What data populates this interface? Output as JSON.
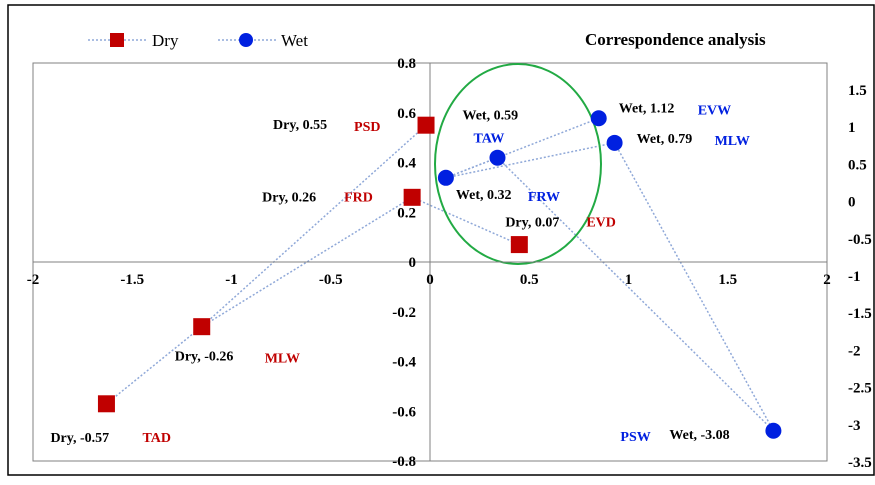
{
  "chart_data": {
    "type": "scatter",
    "title": "Correspondence analysis",
    "legend_position": "top-left",
    "grid": false,
    "x_axis": {
      "range": [
        -2,
        2
      ],
      "ticks": [
        "-2",
        "-1.5",
        "-1",
        "-0.5",
        "0",
        "0.5",
        "1",
        "1.5",
        "2"
      ]
    },
    "y_axis_left": {
      "range": [
        -0.8,
        0.8
      ],
      "ticks": [
        "0.8",
        "0.6",
        "0.4",
        "0.2",
        "0",
        "-0.2",
        "-0.4",
        "-0.6",
        "-0.8"
      ]
    },
    "y_axis_right": {
      "range": [
        -3.5,
        1.5
      ],
      "ticks": [
        "1.5",
        "1",
        "0.5",
        "0",
        "-0.5",
        "-1",
        "-1.5",
        "-2",
        "-2.5",
        "-3",
        "-3.5"
      ]
    },
    "series": [
      {
        "name": "Dry",
        "color": "#c00000",
        "marker": "square",
        "points": [
          {
            "x": -0.02,
            "y": 0.55,
            "label": "Dry, 0.55",
            "category": "PSD"
          },
          {
            "x": -0.09,
            "y": 0.26,
            "label": "Dry, 0.26",
            "category": "FRD"
          },
          {
            "x": 0.45,
            "y": 0.07,
            "label": "Dry, 0.07",
            "category": "EVD"
          },
          {
            "x": -1.15,
            "y": -0.26,
            "label": "Dry, -0.26",
            "category": "MLW"
          },
          {
            "x": -1.63,
            "y": -0.57,
            "label": "Dry, -0.57",
            "category": "TAD"
          }
        ]
      },
      {
        "name": "Wet",
        "color": "#0020e0",
        "marker": "circle",
        "points": [
          {
            "x": 0.85,
            "y": 1.12,
            "label": "Wet, 1.12",
            "category": "EVW"
          },
          {
            "x": 0.93,
            "y": 0.79,
            "label": "Wet, 0.79",
            "category": "MLW"
          },
          {
            "x": 0.34,
            "y": 0.59,
            "label": "Wet, 0.59",
            "category": "TAW"
          },
          {
            "x": 0.08,
            "y": 0.32,
            "label": "Wet, 0.32",
            "category": "FRW"
          },
          {
            "x": 1.73,
            "y": -3.08,
            "label": "Wet, -3.08",
            "category": "PSW"
          }
        ]
      }
    ],
    "connector_color": "#8fa8d8",
    "highlight_ellipse_color": "#22aa44"
  }
}
